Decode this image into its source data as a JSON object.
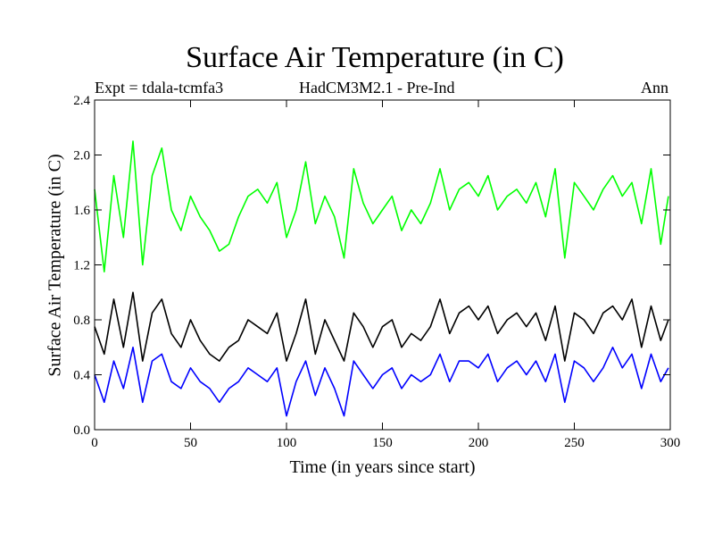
{
  "chart_data": {
    "type": "line",
    "title": "Surface Air Temperature (in C)",
    "experiment_label": "Expt = tdala-tcmfa3",
    "model_label": "HadCM3M2.1 - Pre-Ind",
    "season_label": "Ann",
    "xlabel": "Time (in years since start)",
    "ylabel": "Surface Air Temperature (in C)",
    "xlim": [
      0,
      300
    ],
    "ylim": [
      0.0,
      2.4
    ],
    "xticks": [
      0,
      50,
      100,
      150,
      200,
      250,
      300
    ],
    "yticks": [
      0.0,
      0.4,
      0.8,
      1.2,
      1.6,
      2.0,
      2.4
    ],
    "ytick_labels": [
      "0.0",
      "0.4",
      "0.8",
      "1.2",
      "1.6",
      "2.0",
      "2.4"
    ],
    "grid": false,
    "series": [
      {
        "name": "green",
        "color": "#00ff00",
        "x": [
          0,
          5,
          10,
          15,
          20,
          25,
          30,
          35,
          40,
          45,
          50,
          55,
          60,
          65,
          70,
          75,
          80,
          85,
          90,
          95,
          100,
          105,
          110,
          115,
          120,
          125,
          130,
          135,
          140,
          145,
          150,
          155,
          160,
          165,
          170,
          175,
          180,
          185,
          190,
          195,
          200,
          205,
          210,
          215,
          220,
          225,
          230,
          235,
          240,
          245,
          250,
          255,
          260,
          265,
          270,
          275,
          280,
          285,
          290,
          295,
          299
        ],
        "values": [
          1.75,
          1.15,
          1.85,
          1.4,
          2.1,
          1.2,
          1.85,
          2.05,
          1.6,
          1.45,
          1.7,
          1.55,
          1.45,
          1.3,
          1.35,
          1.55,
          1.7,
          1.75,
          1.65,
          1.8,
          1.4,
          1.6,
          1.95,
          1.5,
          1.7,
          1.55,
          1.25,
          1.9,
          1.65,
          1.5,
          1.6,
          1.7,
          1.45,
          1.6,
          1.5,
          1.65,
          1.9,
          1.6,
          1.75,
          1.8,
          1.7,
          1.85,
          1.6,
          1.7,
          1.75,
          1.65,
          1.8,
          1.55,
          1.9,
          1.25,
          1.8,
          1.7,
          1.6,
          1.75,
          1.85,
          1.7,
          1.8,
          1.5,
          1.9,
          1.35,
          1.7
        ]
      },
      {
        "name": "black",
        "color": "#000000",
        "x": [
          0,
          5,
          10,
          15,
          20,
          25,
          30,
          35,
          40,
          45,
          50,
          55,
          60,
          65,
          70,
          75,
          80,
          85,
          90,
          95,
          100,
          105,
          110,
          115,
          120,
          125,
          130,
          135,
          140,
          145,
          150,
          155,
          160,
          165,
          170,
          175,
          180,
          185,
          190,
          195,
          200,
          205,
          210,
          215,
          220,
          225,
          230,
          235,
          240,
          245,
          250,
          255,
          260,
          265,
          270,
          275,
          280,
          285,
          290,
          295,
          299
        ],
        "values": [
          0.75,
          0.55,
          0.95,
          0.6,
          1.0,
          0.5,
          0.85,
          0.95,
          0.7,
          0.6,
          0.8,
          0.65,
          0.55,
          0.5,
          0.6,
          0.65,
          0.8,
          0.75,
          0.7,
          0.85,
          0.5,
          0.7,
          0.95,
          0.55,
          0.8,
          0.65,
          0.5,
          0.85,
          0.75,
          0.6,
          0.75,
          0.8,
          0.6,
          0.7,
          0.65,
          0.75,
          0.95,
          0.7,
          0.85,
          0.9,
          0.8,
          0.9,
          0.7,
          0.8,
          0.85,
          0.75,
          0.85,
          0.65,
          0.9,
          0.5,
          0.85,
          0.8,
          0.7,
          0.85,
          0.9,
          0.8,
          0.95,
          0.6,
          0.9,
          0.65,
          0.8
        ]
      },
      {
        "name": "blue",
        "color": "#0000ff",
        "x": [
          0,
          5,
          10,
          15,
          20,
          25,
          30,
          35,
          40,
          45,
          50,
          55,
          60,
          65,
          70,
          75,
          80,
          85,
          90,
          95,
          100,
          105,
          110,
          115,
          120,
          125,
          130,
          135,
          140,
          145,
          150,
          155,
          160,
          165,
          170,
          175,
          180,
          185,
          190,
          195,
          200,
          205,
          210,
          215,
          220,
          225,
          230,
          235,
          240,
          245,
          250,
          255,
          260,
          265,
          270,
          275,
          280,
          285,
          290,
          295,
          299
        ],
        "values": [
          0.4,
          0.2,
          0.5,
          0.3,
          0.6,
          0.2,
          0.5,
          0.55,
          0.35,
          0.3,
          0.45,
          0.35,
          0.3,
          0.2,
          0.3,
          0.35,
          0.45,
          0.4,
          0.35,
          0.45,
          0.1,
          0.35,
          0.5,
          0.25,
          0.45,
          0.3,
          0.1,
          0.5,
          0.4,
          0.3,
          0.4,
          0.45,
          0.3,
          0.4,
          0.35,
          0.4,
          0.55,
          0.35,
          0.5,
          0.5,
          0.45,
          0.55,
          0.35,
          0.45,
          0.5,
          0.4,
          0.5,
          0.35,
          0.55,
          0.2,
          0.5,
          0.45,
          0.35,
          0.45,
          0.6,
          0.45,
          0.55,
          0.3,
          0.55,
          0.35,
          0.45
        ]
      }
    ]
  }
}
